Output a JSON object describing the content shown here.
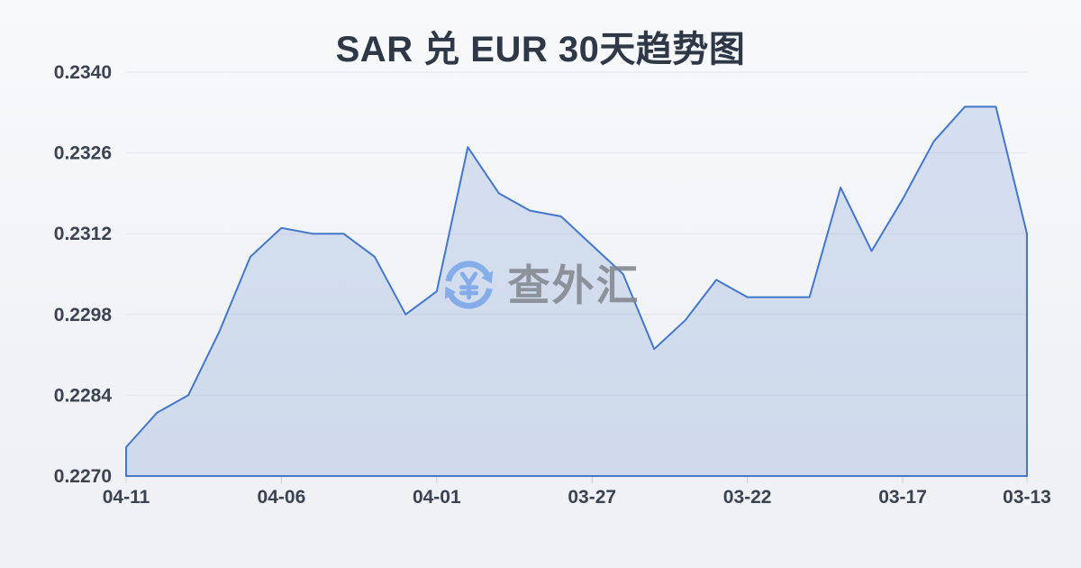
{
  "page": {
    "title": "SAR 兑 EUR 30天趋势图"
  },
  "watermark": {
    "icon": "yen-exchange-icon",
    "text": "查外汇"
  },
  "colors": {
    "line": "#4377c9",
    "fill": "rgba(68,118,202,0.18)",
    "grid": "#e3e6eb",
    "tick": "#c9cdd4",
    "axis_label": "#3b4252",
    "title": "#2e3847",
    "watermark_icon": "#7fa9e8",
    "watermark_text": "#8b8f97",
    "background": "#f1f3f6"
  },
  "chart_data": {
    "type": "area",
    "title": "SAR 兑 EUR 30天趋势图",
    "x": [
      "04-11",
      "04-10",
      "04-09",
      "04-08",
      "04-07",
      "04-06",
      "04-05",
      "04-04",
      "04-03",
      "04-02",
      "04-01",
      "03-31",
      "03-30",
      "03-29",
      "03-28",
      "03-27",
      "03-26",
      "03-25",
      "03-24",
      "03-23",
      "03-22",
      "03-21",
      "03-20",
      "03-19",
      "03-18",
      "03-17",
      "03-16",
      "03-15",
      "03-14",
      "03-13"
    ],
    "values": [
      0.2275,
      0.2281,
      0.2284,
      0.2295,
      0.2308,
      0.2313,
      0.2312,
      0.2312,
      0.2308,
      0.2298,
      0.2302,
      0.2327,
      0.2319,
      0.2316,
      0.2315,
      0.231,
      0.2305,
      0.2292,
      0.2297,
      0.2304,
      0.2301,
      0.2301,
      0.2301,
      0.232,
      0.2309,
      0.2318,
      0.2328,
      0.2334,
      0.2334,
      0.2312
    ],
    "ylim": [
      0.227,
      0.234
    ],
    "y_ticks": [
      0.234,
      0.2326,
      0.2312,
      0.2298,
      0.2284,
      0.227
    ],
    "y_tick_labels": [
      "0.2340",
      "0.2326",
      "0.2312",
      "0.2298",
      "0.2284",
      "0.2270"
    ],
    "x_tick_labels": [
      "04-11",
      "04-06",
      "04-01",
      "03-27",
      "03-22",
      "03-17",
      "03-13"
    ],
    "x_tick_indices": [
      0,
      5,
      10,
      15,
      20,
      25,
      29
    ],
    "xlabel": "",
    "ylabel": "",
    "grid": "horizontal",
    "legend": "none",
    "x_order": "reverse-chronological"
  }
}
